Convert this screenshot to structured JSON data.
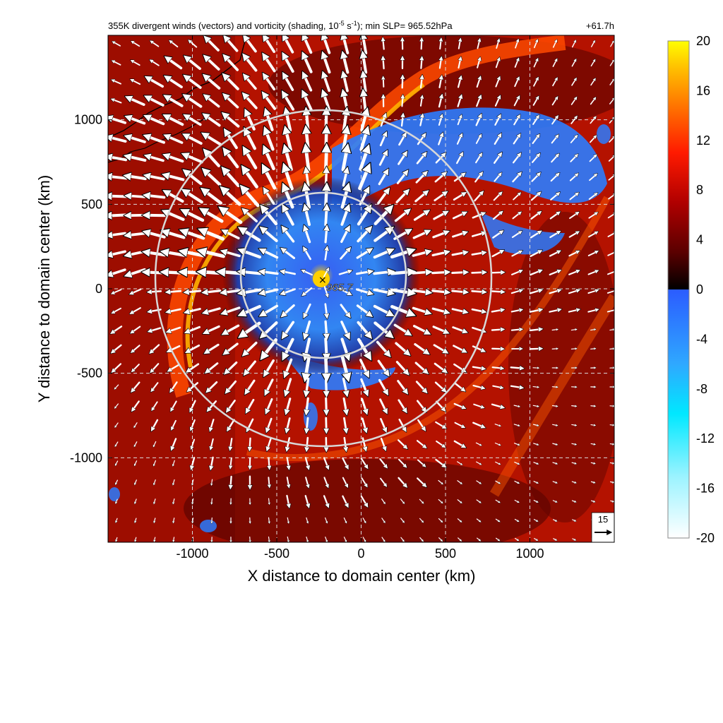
{
  "chart_data": {
    "type": "heatmap",
    "title": "355K divergent winds (vectors) and vorticity (shading, 10",
    "title_exp": "-5",
    "title_mid": " s",
    "title_exp2": "-1",
    "title_end": "); min SLP= 965.52hPa",
    "time_label": "+61.7h",
    "xlabel": "X distance to domain center (km)",
    "ylabel": "Y distance to domain center (km)",
    "xlim": [
      -1500,
      1500
    ],
    "ylim": [
      -1500,
      1500
    ],
    "xticks": [
      -1000,
      -500,
      0,
      500,
      1000
    ],
    "xtick_labels": [
      "-1000",
      "-500",
      "0",
      "500",
      "1000"
    ],
    "yticks": [
      -1000,
      -500,
      0,
      500,
      1000
    ],
    "ytick_labels": [
      "-1000",
      "-500",
      "0",
      "500",
      "1000"
    ],
    "grid": true,
    "center_marker": {
      "x": -230,
      "y": 55,
      "label": "965.7"
    },
    "rings": [
      {
        "center": [
          -230,
          80
        ],
        "radius": 490
      },
      {
        "center": [
          -230,
          80
        ],
        "radius": 1000
      }
    ],
    "reference_vector": {
      "label": "15",
      "magnitude": 15
    },
    "colorbar": {
      "ticks": [
        20,
        16,
        12,
        8,
        4,
        0,
        -4,
        -8,
        -12,
        -16,
        -20
      ],
      "tick_labels": [
        "20",
        "16",
        "12",
        "8",
        "4",
        "0",
        "-4",
        "-8",
        "-12",
        "-16",
        "-20"
      ],
      "range": [
        -20,
        20
      ],
      "positive_colors": [
        "#000000",
        "#5a0000",
        "#a50000",
        "#e10000",
        "#ff3c00",
        "#ff8c00",
        "#ffd000",
        "#ffff00"
      ],
      "negative_colors": [
        "#2b5cff",
        "#36a3ff",
        "#00e5ff",
        "#7ff0ff",
        "#ffffff"
      ]
    }
  }
}
